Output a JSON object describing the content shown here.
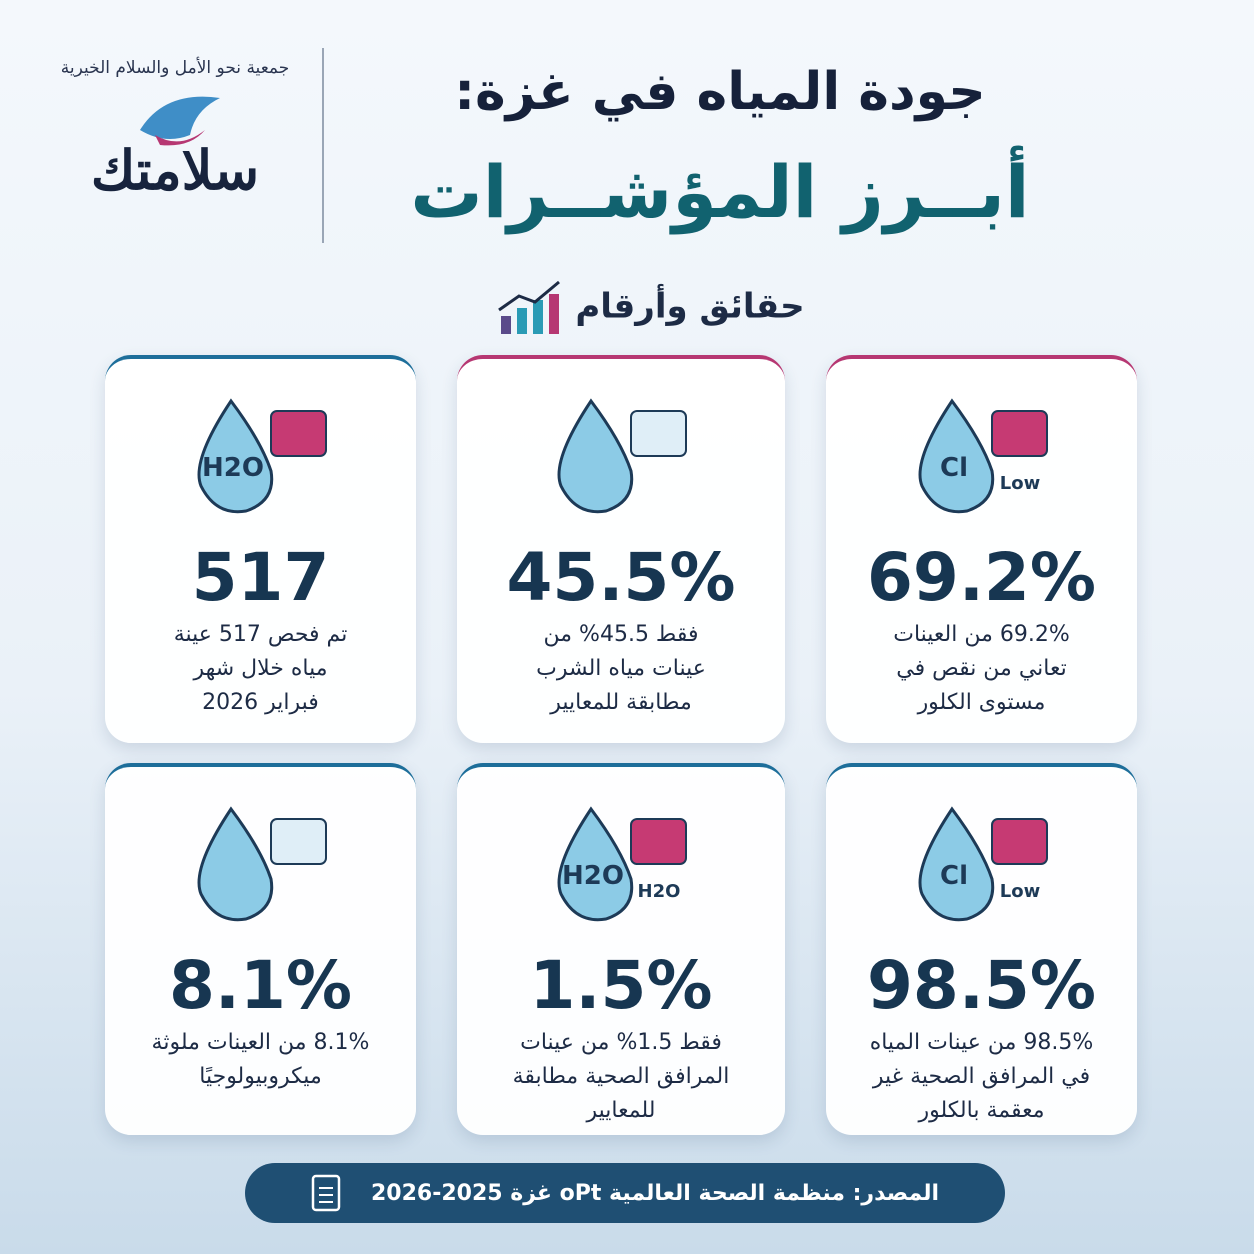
{
  "logo": {
    "org_name": "جمعية نحو الأمل والسلام الخيرية",
    "brand": "سلامتك"
  },
  "header": {
    "title_line1": "جودة المياه في غزة:",
    "title_line2": "أبــرز المؤشــرات",
    "subtitle": "حقائق وأرقام"
  },
  "cards": [
    {
      "icon_labels": [
        "Cl",
        "Low"
      ],
      "value": "69.2%",
      "lines": [
        "69.2% من العينات",
        "تعاني من نقص في",
        "مستوى الكلور"
      ]
    },
    {
      "icon_labels": [],
      "value": "45.5%",
      "lines": [
        "فقط 45.5% من",
        "عينات مياه الشرب",
        "مطابقة للمعايير"
      ]
    },
    {
      "icon_labels": [
        "H2O"
      ],
      "value": "517",
      "lines": [
        "تم فحص 517 عينة",
        "مياه خلال شهر",
        "فبراير 2026"
      ]
    },
    {
      "icon_labels": [
        "Cl",
        "Low"
      ],
      "value": "98.5%",
      "lines": [
        "98.5% من عينات المياه",
        "في المرافق الصحية غير",
        "معقمة بالكلور"
      ]
    },
    {
      "icon_labels": [
        "H2O",
        "H2O"
      ],
      "value": "1.5%",
      "lines": [
        "فقط 1.5% من عينات",
        "المرافق الصحية مطابقة",
        "للمعايير"
      ]
    },
    {
      "icon_labels": [],
      "value": "8.1%",
      "lines": [
        "8.1% من العينات ملوثة",
        "ميكروبيولوجيًا"
      ]
    }
  ],
  "footer": {
    "source": "المصدر: منظمة الصحة العالمية oPt غزة 2025-2026"
  }
}
